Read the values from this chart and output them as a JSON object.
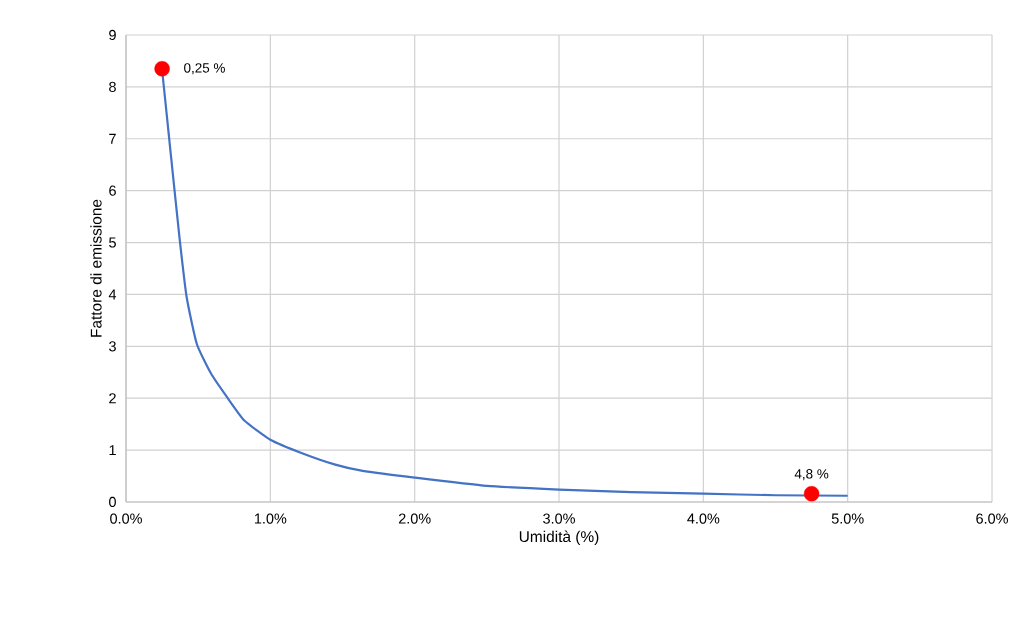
{
  "chart_data": {
    "type": "line",
    "xlabel": "Umidità (%)",
    "ylabel": "Fattore di emissione",
    "xlim": [
      0,
      6
    ],
    "ylim": [
      0,
      9
    ],
    "xticks": [
      {
        "value": 0,
        "label": "0.0%"
      },
      {
        "value": 1,
        "label": "1.0%"
      },
      {
        "value": 2,
        "label": "2.0%"
      },
      {
        "value": 3,
        "label": "3.0%"
      },
      {
        "value": 4,
        "label": "4.0%"
      },
      {
        "value": 5,
        "label": "5.0%"
      },
      {
        "value": 6,
        "label": "6.0%"
      }
    ],
    "yticks": [
      0,
      1,
      2,
      3,
      4,
      5,
      6,
      7,
      8,
      9
    ],
    "grid": true,
    "series": [
      {
        "color": "#4472c4",
        "x": [
          0.25,
          0.31,
          0.37,
          0.42,
          0.49,
          0.59,
          0.7,
          0.82,
          1.0,
          1.22,
          1.45,
          1.64,
          2.0,
          2.5,
          3.0,
          3.5,
          4.0,
          4.5,
          5.0
        ],
        "values": [
          8.33,
          6.71,
          5.11,
          3.95,
          3.05,
          2.47,
          2.02,
          1.57,
          1.2,
          0.94,
          0.72,
          0.6,
          0.47,
          0.31,
          0.24,
          0.19,
          0.16,
          0.13,
          0.12
        ]
      },
      {
        "type": "scatter",
        "color": "#ff0000",
        "x": [
          0.25,
          4.75
        ],
        "values": [
          8.35,
          0.16
        ]
      }
    ],
    "annotations": [
      {
        "text": "0,25 %",
        "x": 0.25,
        "y": 8.35
      },
      {
        "text": "4,8 %",
        "x": 4.75,
        "y": 0.16
      }
    ]
  }
}
